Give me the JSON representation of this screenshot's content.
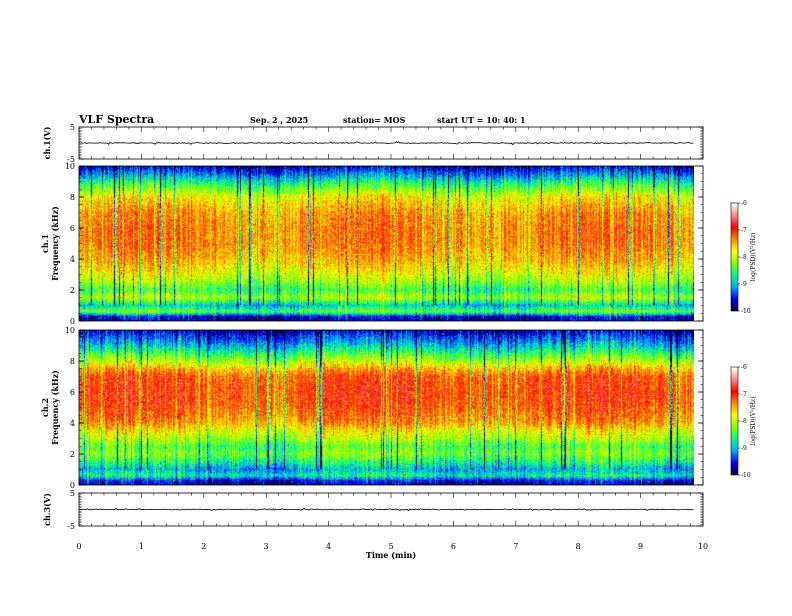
{
  "header": {
    "title": "VLF Spectra",
    "date": "Sep. 2 , 2025",
    "station": "station= MOS",
    "start": "start  UT =   10: 40: 1"
  },
  "colors": {
    "background": "#ffffff",
    "axis": "#000000",
    "colormap": [
      "#000033",
      "#0000ff",
      "#00aaff",
      "#00ff88",
      "#88ff00",
      "#ffff00",
      "#ff8800",
      "#ff0000",
      "#ff8888",
      "#ffffff"
    ]
  },
  "chart_data": [
    {
      "type": "line",
      "name": "ch1-waveform",
      "ylabel": "ch.1(V)",
      "ylim": [
        -5,
        5
      ],
      "yticks": [
        {
          "v": 5,
          "label": "5"
        },
        {
          "v": -5,
          "label": "-5"
        }
      ],
      "baseline": 0,
      "noise_amplitude": 0.4,
      "x_range_min": [
        0,
        10
      ]
    },
    {
      "type": "heatmap",
      "name": "ch1-spectrogram",
      "ylabel": "ch.1 Frequency (kHz)",
      "ylim": [
        0,
        10
      ],
      "yticks": [
        {
          "v": 0,
          "label": "0"
        },
        {
          "v": 2,
          "label": "2"
        },
        {
          "v": 4,
          "label": "4"
        },
        {
          "v": 6,
          "label": "6"
        },
        {
          "v": 8,
          "label": "8"
        },
        {
          "v": 10,
          "label": "10"
        }
      ],
      "x_range_min": [
        0,
        9.85
      ],
      "frequency_profile_kHz": [
        0,
        0.3,
        0.6,
        1.0,
        1.5,
        2.0,
        2.5,
        3.0,
        3.5,
        4.0,
        5.0,
        6.0,
        7.0,
        8.0,
        8.5,
        9.0,
        9.5,
        10.0
      ],
      "log_psd_profile": [
        -9.8,
        -9.6,
        -8.2,
        -8.9,
        -7.9,
        -8.4,
        -8.0,
        -7.7,
        -7.5,
        -7.3,
        -7.1,
        -7.1,
        -7.2,
        -7.6,
        -8.1,
        -8.6,
        -9.2,
        -9.7
      ],
      "colorbar": {
        "label": "log(PSD)(V²/Hz)",
        "range": [
          -10,
          -6
        ],
        "ticks": [
          {
            "v": -6,
            "label": "-6"
          },
          {
            "v": -7,
            "label": "-7"
          },
          {
            "v": -8,
            "label": "-8"
          },
          {
            "v": -9,
            "label": "-9"
          },
          {
            "v": -10,
            "label": "-10"
          }
        ]
      }
    },
    {
      "type": "heatmap",
      "name": "ch2-spectrogram",
      "ylabel": "ch.2 Frequency (kHz)",
      "ylim": [
        0,
        10
      ],
      "yticks": [
        {
          "v": 0,
          "label": "0"
        },
        {
          "v": 2,
          "label": "2"
        },
        {
          "v": 4,
          "label": "4"
        },
        {
          "v": 6,
          "label": "6"
        },
        {
          "v": 8,
          "label": "8"
        },
        {
          "v": 10,
          "label": "10"
        }
      ],
      "x_range_min": [
        0,
        9.85
      ],
      "frequency_profile_kHz": [
        0,
        0.3,
        0.6,
        1.0,
        1.5,
        2.0,
        2.5,
        3.0,
        3.5,
        4.0,
        5.0,
        6.0,
        7.0,
        7.5,
        8.0,
        8.5,
        9.0,
        9.5,
        10.0
      ],
      "log_psd_profile": [
        -9.8,
        -9.5,
        -8.6,
        -9.0,
        -8.5,
        -8.1,
        -8.3,
        -7.9,
        -7.6,
        -7.2,
        -6.9,
        -6.8,
        -6.9,
        -7.3,
        -7.9,
        -8.4,
        -8.9,
        -9.3,
        -9.7
      ],
      "colorbar": {
        "label": "log(PSD)(V²/Hz)",
        "range": [
          -10,
          -6
        ],
        "ticks": [
          {
            "v": -6,
            "label": "-6"
          },
          {
            "v": -7,
            "label": "-7"
          },
          {
            "v": -8,
            "label": "-8"
          },
          {
            "v": -9,
            "label": "-9"
          },
          {
            "v": -10,
            "label": "-10"
          }
        ]
      }
    },
    {
      "type": "line",
      "name": "ch3-waveform",
      "ylabel": "ch.3(V)",
      "ylim": [
        -5,
        5
      ],
      "yticks": [
        {
          "v": 5,
          "label": "5"
        },
        {
          "v": -5,
          "label": "-5"
        }
      ],
      "baseline": 0,
      "noise_amplitude": 0.3,
      "x_range_min": [
        0,
        10
      ]
    }
  ],
  "xaxis": {
    "label": "Time  (min)",
    "range": [
      0,
      10
    ],
    "ticks": [
      {
        "v": 0,
        "label": "0"
      },
      {
        "v": 1,
        "label": "1"
      },
      {
        "v": 2,
        "label": "2"
      },
      {
        "v": 3,
        "label": "3"
      },
      {
        "v": 4,
        "label": "4"
      },
      {
        "v": 5,
        "label": "5"
      },
      {
        "v": 6,
        "label": "6"
      },
      {
        "v": 7,
        "label": "7"
      },
      {
        "v": 8,
        "label": "8"
      },
      {
        "v": 9,
        "label": "9"
      },
      {
        "v": 10,
        "label": "10"
      }
    ]
  }
}
